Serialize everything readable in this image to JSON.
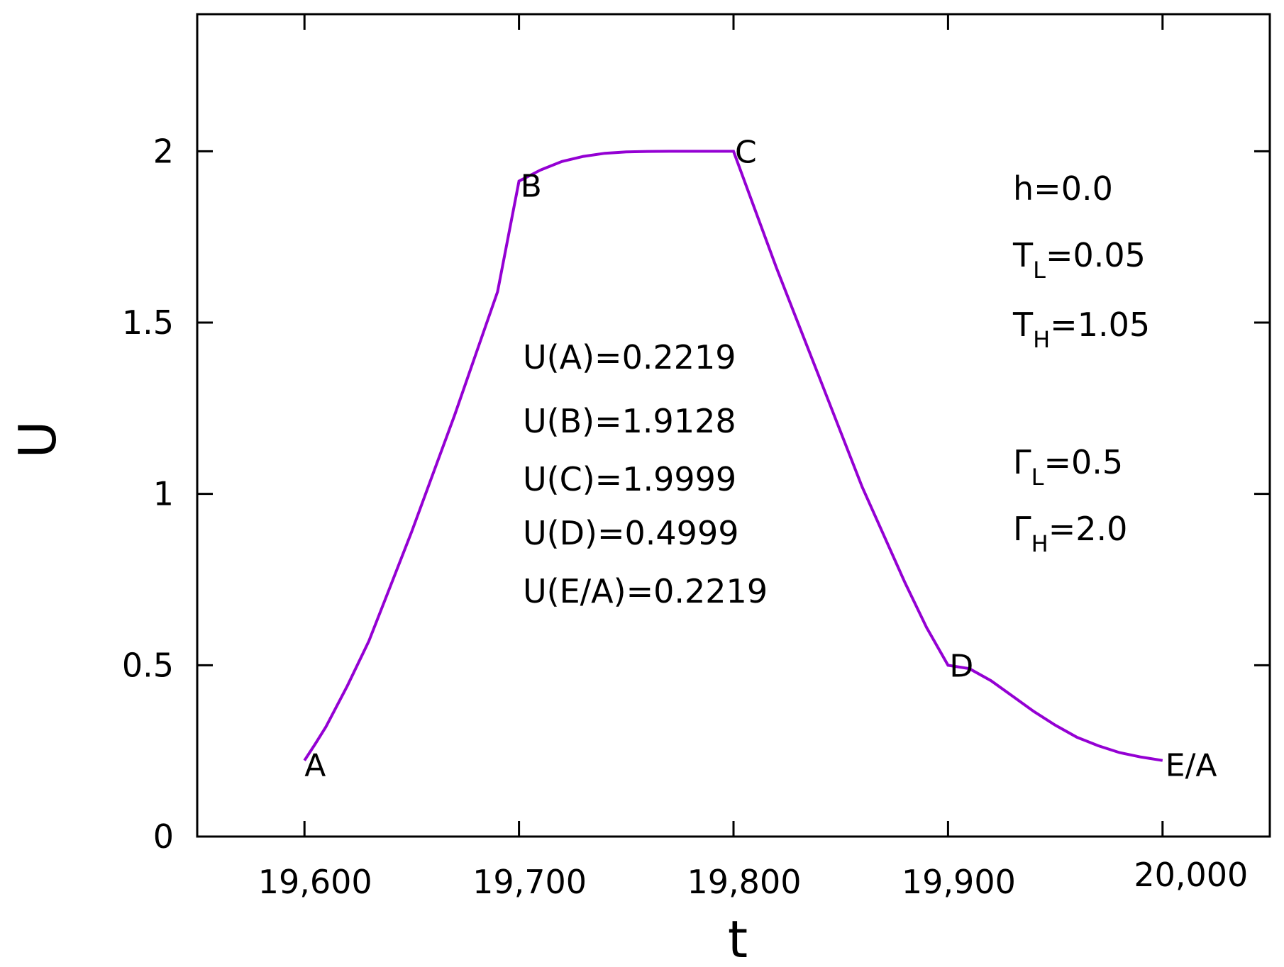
{
  "chart_data": {
    "type": "line",
    "title": "",
    "xlabel": "t",
    "ylabel": "U",
    "xlim": [
      19550,
      20050
    ],
    "ylim": [
      0,
      2.4
    ],
    "x_ticks": [
      19600,
      19700,
      19800,
      19900,
      20000
    ],
    "x_tick_labels": [
      "19,600",
      "19,700",
      "19,800",
      "19,900",
      "20,000"
    ],
    "y_ticks": [
      0,
      0.5,
      1,
      1.5,
      2
    ],
    "y_tick_labels": [
      "0",
      "0.5",
      "1",
      "1.5",
      "2"
    ],
    "grid": false,
    "line_color": "#9400d3",
    "series": [
      {
        "x": [
          19600,
          19605,
          19610,
          19620,
          19630,
          19640,
          19650,
          19660,
          19670,
          19680,
          19690,
          19700,
          19710,
          19720,
          19730,
          19740,
          19750,
          19760,
          19770,
          19780,
          19790,
          19800,
          19810,
          19820,
          19830,
          19840,
          19850,
          19860,
          19870,
          19880,
          19890,
          19900,
          19910,
          19920,
          19930,
          19940,
          19950,
          19960,
          19970,
          19980,
          19990,
          20000
        ],
        "y": [
          0.2219,
          0.27,
          0.32,
          0.44,
          0.57,
          0.73,
          0.89,
          1.06,
          1.23,
          1.41,
          1.59,
          1.9128,
          1.945,
          1.97,
          1.985,
          1.994,
          1.998,
          1.9995,
          1.9999,
          1.9999,
          1.9999,
          1.9999,
          1.83,
          1.66,
          1.5,
          1.34,
          1.18,
          1.02,
          0.88,
          0.74,
          0.61,
          0.4999,
          0.49,
          0.455,
          0.41,
          0.365,
          0.325,
          0.29,
          0.265,
          0.245,
          0.232,
          0.2219
        ]
      }
    ],
    "point_labels": [
      {
        "text": "A",
        "x": 19600,
        "y": 0.2219
      },
      {
        "text": "B",
        "x": 19700,
        "y": 1.9128
      },
      {
        "text": "C",
        "x": 19800,
        "y": 1.9999
      },
      {
        "text": "D",
        "x": 19900,
        "y": 0.4999
      },
      {
        "text": "E/A",
        "x": 20000,
        "y": 0.2219
      }
    ],
    "annotations": {
      "values": [
        "U(A)=0.2219",
        "U(B)=1.9128",
        "U(C)=1.9999",
        "U(D)=0.4999",
        "U(E/A)=0.2219"
      ],
      "params": [
        {
          "main": "h=0.0",
          "sub": "",
          "rest": ""
        },
        {
          "main": "T",
          "sub": "L",
          "rest": "=0.05"
        },
        {
          "main": "T",
          "sub": "H",
          "rest": "=1.05"
        },
        {
          "main": "Γ",
          "sub": "L",
          "rest": "=0.5"
        },
        {
          "main": "Γ",
          "sub": "H",
          "rest": "=2.0"
        }
      ]
    }
  }
}
